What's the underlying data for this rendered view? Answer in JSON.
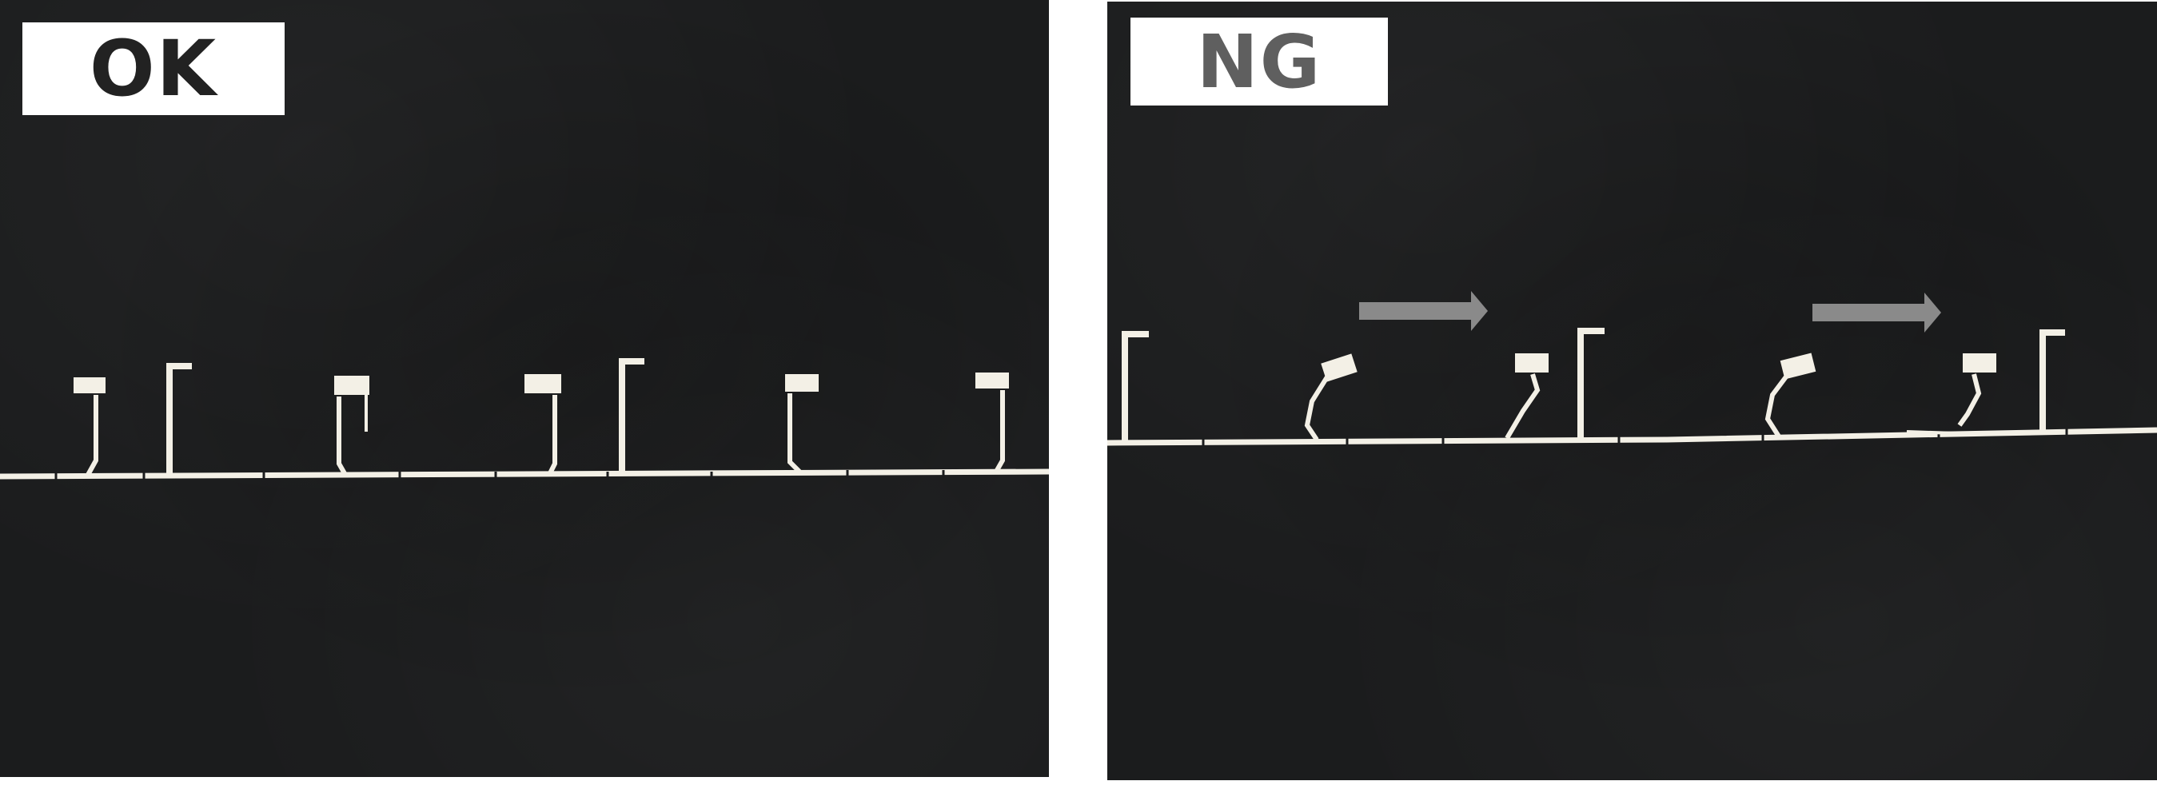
{
  "panels": [
    {
      "id": "left",
      "label": "OK"
    },
    {
      "id": "right",
      "label": "NG"
    }
  ],
  "colors": {
    "background": "#1b1c1d",
    "wire": "#f3f0e6",
    "label_ok_text": "#222222",
    "label_ng_text": "#5f5f5f",
    "arrow": "#8a8a8a"
  }
}
